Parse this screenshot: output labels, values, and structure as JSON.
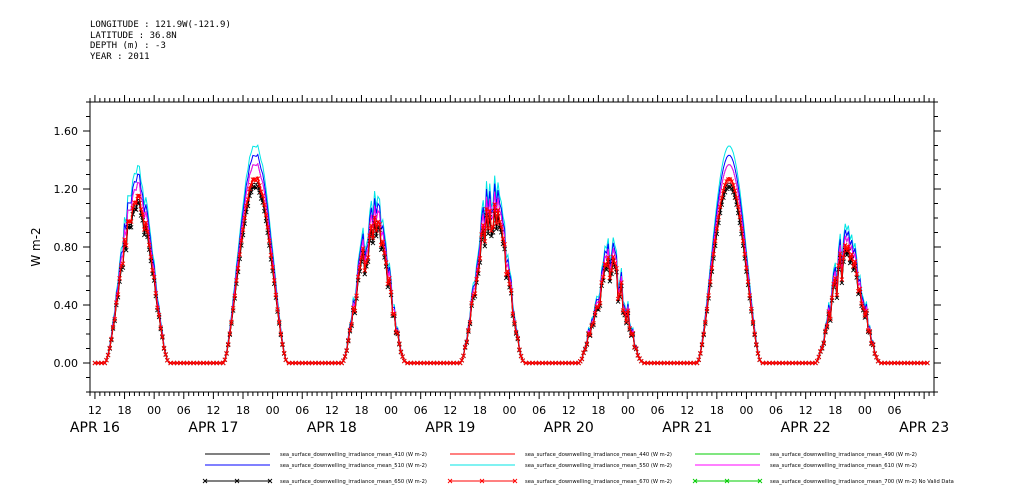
{
  "header": {
    "longitude": "LONGITUDE : 121.9W(-121.9)",
    "latitude": "LATITUDE : 36.8N",
    "depth": "DEPTH (m) : -3",
    "year": "YEAR : 2011"
  },
  "chart_data": {
    "type": "line",
    "ylabel": "W m-2",
    "ylim": [
      -0.2,
      1.8
    ],
    "yticks": [
      "0.00",
      "0.40",
      "0.80",
      "1.20",
      "1.60"
    ],
    "ytick_values": [
      0.0,
      0.4,
      0.8,
      1.2,
      1.6
    ],
    "x_hour_labels": [
      "12",
      "18",
      "00",
      "06",
      "12",
      "18",
      "00",
      "06",
      "12",
      "18",
      "00",
      "06",
      "12",
      "18",
      "00",
      "06",
      "12",
      "18",
      "00",
      "06",
      "12",
      "18",
      "00",
      "06",
      "12",
      "18",
      "00",
      "06"
    ],
    "x_hour_values": [
      -12,
      -6,
      0,
      6,
      12,
      18,
      24,
      30,
      36,
      42,
      48,
      54,
      60,
      66,
      72,
      78,
      84,
      90,
      96,
      102,
      108,
      114,
      120,
      126,
      132,
      138,
      144,
      150
    ],
    "x_day_labels": [
      {
        "label": "APR 16",
        "hour": -12
      },
      {
        "label": "APR 17",
        "hour": 12
      },
      {
        "label": "APR 18",
        "hour": 36
      },
      {
        "label": "APR 19",
        "hour": 60
      },
      {
        "label": "APR 20",
        "hour": 84
      },
      {
        "label": "APR 21",
        "hour": 108
      },
      {
        "label": "APR 22",
        "hour": 132
      },
      {
        "label": "APR 23",
        "hour": 156
      }
    ],
    "xlim_hours": [
      -13,
      158
    ],
    "days": [
      {
        "start": -10,
        "peak_time": -5,
        "end": 3,
        "peak": 1.18,
        "cloudiness": 0.25
      },
      {
        "start": 14,
        "peak_time": 19.5,
        "end": 27,
        "peak": 1.3,
        "cloudiness": 0.05
      },
      {
        "start": 38,
        "peak_time": 43,
        "end": 51,
        "peak": 1.05,
        "cloudiness": 0.6
      },
      {
        "start": 62,
        "peak_time": 67,
        "end": 75,
        "peak": 1.15,
        "cloudiness": 0.4
      },
      {
        "start": 86,
        "peak_time": 90,
        "end": 99,
        "peak": 0.75,
        "cloudiness": 0.7
      },
      {
        "start": 110,
        "peak_time": 115,
        "end": 123,
        "peak": 1.28,
        "cloudiness": 0.0
      },
      {
        "start": 134,
        "peak_time": 139,
        "end": 147,
        "peak": 0.85,
        "cloudiness": 0.6
      }
    ],
    "series": [
      {
        "name": "sea_surface_downwelling_irradiance_mean_410 (W m-2)",
        "color": "#000000",
        "scale": 0.97,
        "marker": "none"
      },
      {
        "name": "sea_surface_downwelling_irradiance_mean_440 (W m-2)",
        "color": "#ff0000",
        "scale": 1.0,
        "marker": "none"
      },
      {
        "name": "sea_surface_downwelling_irradiance_mean_490 (W m-2)",
        "color": "#00cc00",
        "scale": 1.07,
        "marker": "none"
      },
      {
        "name": "sea_surface_downwelling_irradiance_mean_510 (W m-2)",
        "color": "#0000ff",
        "scale": 1.12,
        "marker": "none"
      },
      {
        "name": "sea_surface_downwelling_irradiance_mean_550 (W m-2)",
        "color": "#00e5e5",
        "scale": 1.17,
        "marker": "none"
      },
      {
        "name": "sea_surface_downwelling_irradiance_mean_610 (W m-2)",
        "color": "#ff00ff",
        "scale": 1.07,
        "marker": "none"
      },
      {
        "name": "sea_surface_downwelling_irradiance_mean_650 (W m-2)",
        "color": "#000000",
        "scale": 0.95,
        "marker": "x"
      },
      {
        "name": "sea_surface_downwelling_irradiance_mean_670 (W m-2)",
        "color": "#ff0000",
        "scale": 0.99,
        "marker": "x"
      },
      {
        "name": "sea_surface_downwelling_irradiance_mean_700 (W m-2) No Valid Data",
        "color": "#00cc00",
        "scale": 0.0,
        "marker": "x"
      }
    ]
  }
}
